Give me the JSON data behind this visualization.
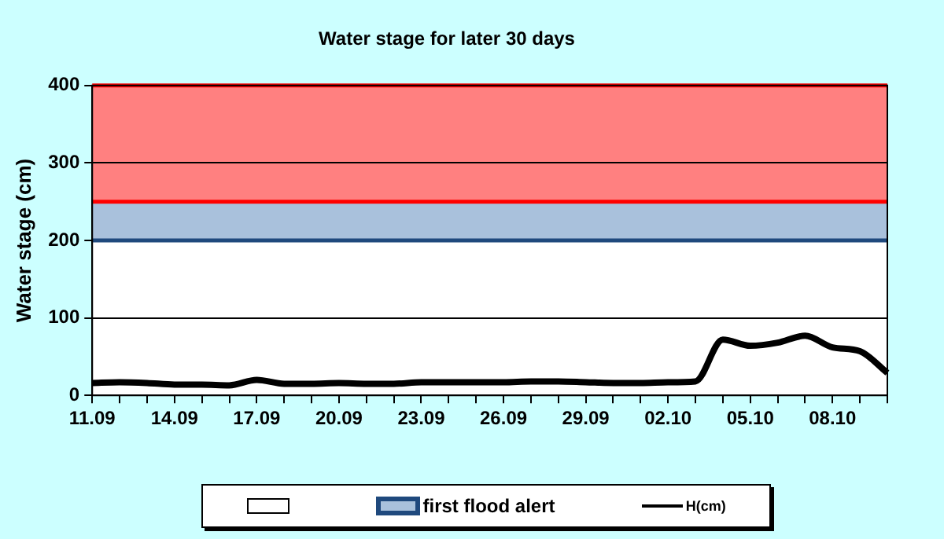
{
  "chart_data": {
    "type": "line",
    "title": "Water stage for later 30 days",
    "ylabel": "Water stage (cm)",
    "categories": [
      "11.09",
      null,
      null,
      "14.09",
      null,
      null,
      "17.09",
      null,
      null,
      "20.09",
      null,
      null,
      "23.09",
      null,
      null,
      "26.09",
      null,
      null,
      "29.09",
      null,
      null,
      "02.10",
      null,
      null,
      "05.10",
      null,
      null,
      "08.10",
      null,
      null
    ],
    "series": [
      {
        "name": "H(cm)",
        "color": "#000000",
        "values": [
          16,
          17,
          16,
          14,
          14,
          13,
          20,
          15,
          15,
          16,
          15,
          15,
          17,
          17,
          17,
          17,
          18,
          18,
          17,
          16,
          16,
          17,
          18,
          72,
          64,
          68,
          77,
          62,
          57,
          29
        ]
      }
    ],
    "ylim": [
      0,
      400
    ],
    "yticks": [
      0,
      100,
      200,
      300,
      400
    ],
    "grid": "y",
    "legend": "bottom",
    "marker": "none",
    "line_style": "solid",
    "bands": [
      {
        "axis": "y",
        "from": 200,
        "to": 250,
        "label": "first flood alert",
        "color": "#a9c1dc"
      },
      {
        "axis": "y",
        "from": 250,
        "to": 400,
        "color": "#ff8080"
      }
    ],
    "ref_lines": [
      {
        "axis": "y",
        "value": 200,
        "color": "#1f497d"
      },
      {
        "axis": "y",
        "value": 250,
        "color": "#ff0000"
      },
      {
        "axis": "y",
        "value": 400,
        "color": "#ff0000"
      }
    ]
  }
}
